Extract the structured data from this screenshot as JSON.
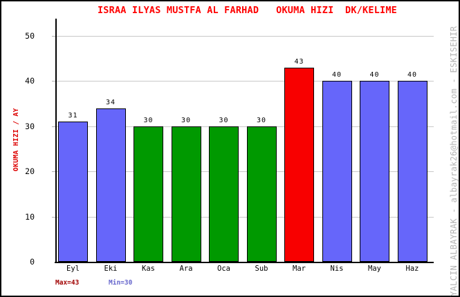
{
  "watermark": "YALCIN ALBAYRAK - albayrak26@hotmail.com - ESKISEHIR",
  "legend": {
    "max_label": "Max=43",
    "min_label": "Min=30"
  },
  "colors": {
    "title": "#ff0000",
    "ylabel": "#dd0000",
    "max_label": "#a00000",
    "min_label": "#6666cc",
    "watermark": "#b4b4b4",
    "gridline": "#c8c8c8",
    "axis": "#000000",
    "bar_blue": "#6666fa",
    "bar_green": "#009900",
    "bar_red": "#f80000"
  },
  "chart_data": {
    "type": "bar",
    "title": "ISRAA ILYAS MUSTFA AL FARHAD   OKUMA HIZI  DK/KELIME",
    "xlabel": "",
    "ylabel": "OKUMA HIZI / AY",
    "categories": [
      "Eyl",
      "Eki",
      "Kas",
      "Ara",
      "Oca",
      "Sub",
      "Mar",
      "Nis",
      "May",
      "Haz"
    ],
    "values": [
      31,
      34,
      30,
      30,
      30,
      30,
      43,
      40,
      40,
      40
    ],
    "bar_colors": [
      "#6666fa",
      "#6666fa",
      "#009900",
      "#009900",
      "#009900",
      "#009900",
      "#f80000",
      "#6666fa",
      "#6666fa",
      "#6666fa"
    ],
    "value_labels": [
      "31",
      "34",
      "30",
      "30",
      "30",
      "30",
      "43",
      "40",
      "40",
      "40"
    ],
    "ylim": [
      0,
      53
    ],
    "yticks": [
      0,
      10,
      20,
      30,
      40,
      50
    ],
    "grid": true,
    "legend_position": "bottom-left",
    "max": 43,
    "min": 30
  }
}
